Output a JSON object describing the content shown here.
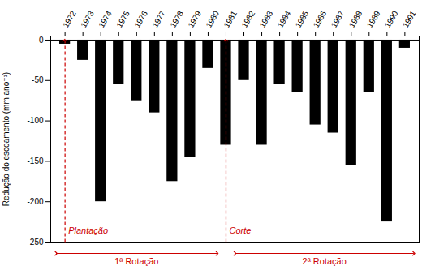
{
  "chart_data": {
    "type": "bar",
    "x": [
      1972,
      1973,
      1974,
      1975,
      1976,
      1977,
      1978,
      1979,
      1980,
      1981,
      1982,
      1983,
      1984,
      1985,
      1986,
      1987,
      1988,
      1989,
      1990,
      1991
    ],
    "values": [
      -5,
      -25,
      -200,
      -55,
      -75,
      -90,
      -175,
      -145,
      -35,
      -130,
      -50,
      -130,
      -55,
      -65,
      -105,
      -115,
      -155,
      -65,
      -225,
      -10
    ],
    "color": "#000000",
    "ylabel": "Redução do escoamento (mm ano⁻¹)",
    "xlim": [
      1971.2,
      1991.8
    ],
    "xticks": [
      1972,
      1973,
      1974,
      1975,
      1976,
      1977,
      1978,
      1979,
      1980,
      1981,
      1982,
      1983,
      1984,
      1985,
      1986,
      1987,
      1988,
      1989,
      1990,
      1991
    ],
    "ylim": [
      -250,
      5
    ],
    "yticks": [
      0,
      -50,
      -100,
      -150,
      -200,
      -250
    ],
    "annotations": [
      {
        "text": "Plantação",
        "x": 1972,
        "color": "#cc0000"
      },
      {
        "text": "Corte",
        "x": 1981,
        "color": "#cc0000"
      }
    ],
    "spans": [
      {
        "text": "1ª Rotação",
        "from": 1971.5,
        "to": 1980.5,
        "color": "#cc0000"
      },
      {
        "text": "2ª Rotação",
        "from": 1981.5,
        "to": 1991.5,
        "color": "#cc0000"
      }
    ]
  }
}
